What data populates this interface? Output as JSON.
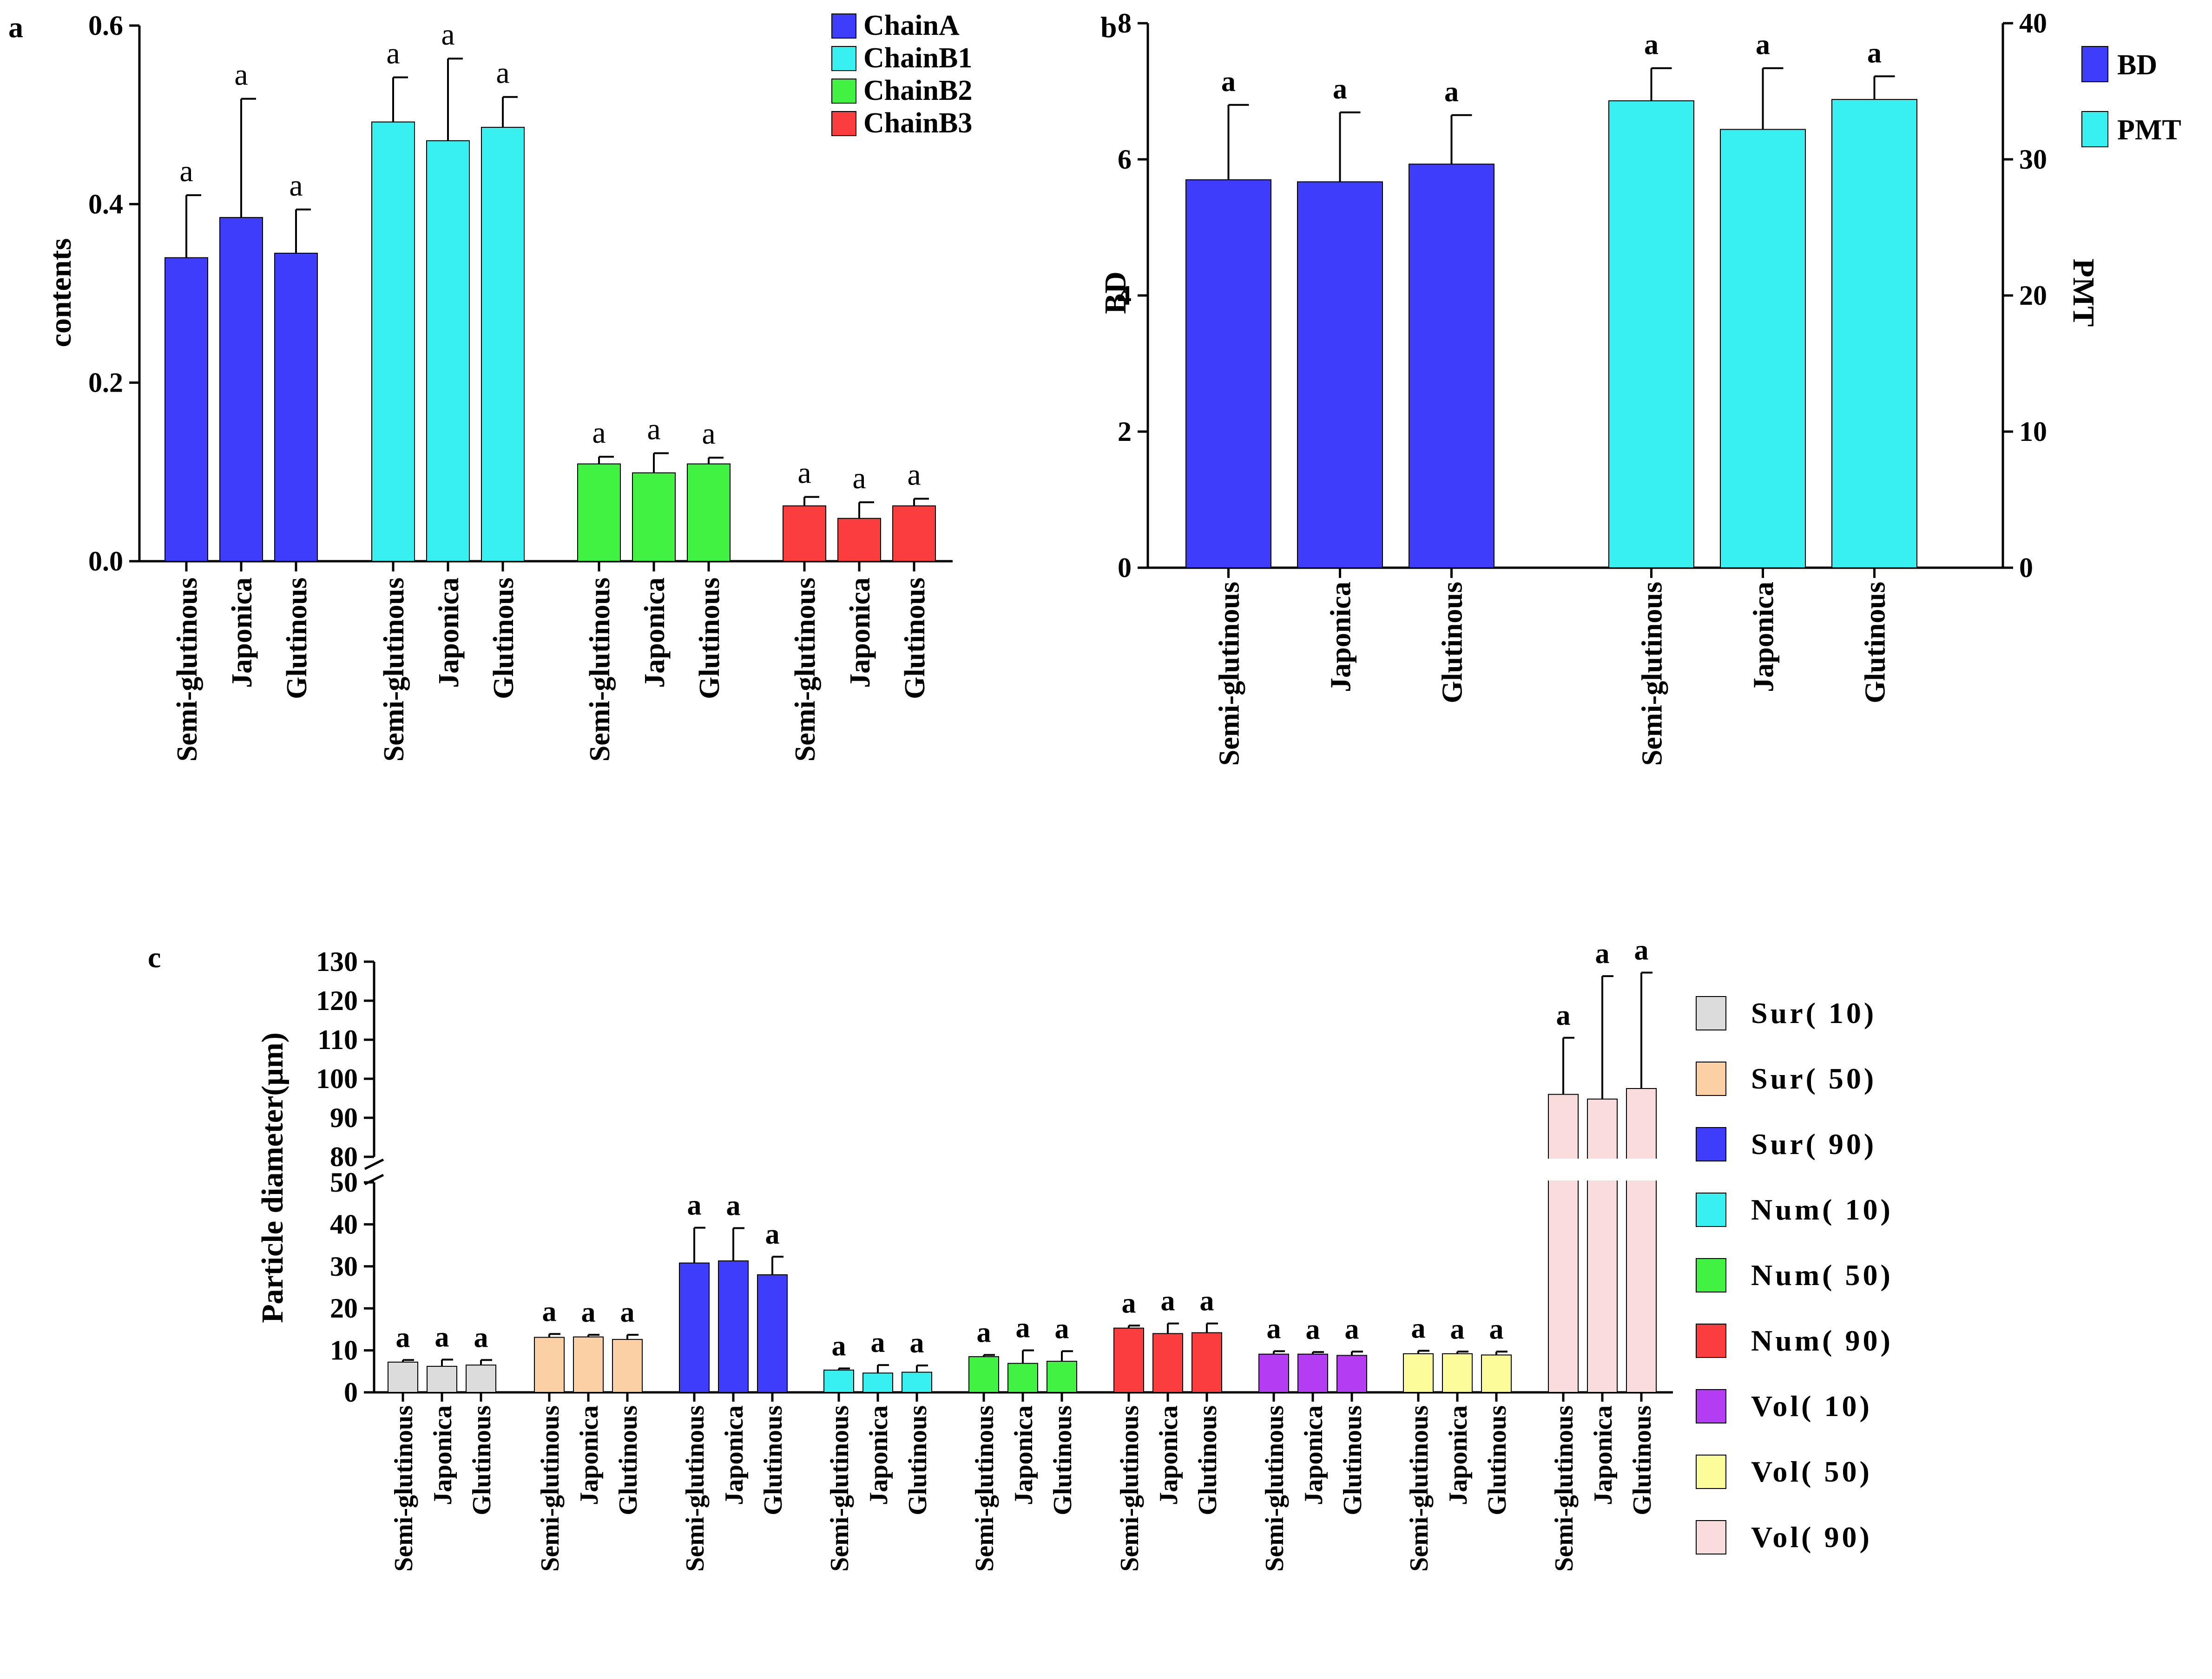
{
  "panels": {
    "a": {
      "label": "a",
      "chart_data": {
        "type": "bar",
        "title": "",
        "xlabel": "",
        "ylabel": "contents",
        "ylim": [
          0,
          0.6
        ],
        "yticks": [
          "0.0",
          "0.2",
          "0.4",
          "0.6"
        ],
        "categories": [
          "Semi-glutinous",
          "Japonica",
          "Glutinous"
        ],
        "series": [
          {
            "name": "ChainA",
            "color": "#3d3dfb",
            "values": [
              0.34,
              0.385,
              0.345
            ],
            "errors": [
              0.07,
              0.133,
              0.049
            ],
            "letters": [
              "a",
              "a",
              "a"
            ]
          },
          {
            "name": "ChainB1",
            "color": "#38f0f0",
            "values": [
              0.492,
              0.471,
              0.486
            ],
            "errors": [
              0.05,
              0.092,
              0.034
            ],
            "letters": [
              "a",
              "a",
              "a"
            ]
          },
          {
            "name": "ChainB2",
            "color": "#42f242",
            "values": [
              0.109,
              0.099,
              0.109
            ],
            "errors": [
              0.008,
              0.022,
              0.007
            ],
            "letters": [
              "a",
              "a",
              "a"
            ]
          },
          {
            "name": "ChainB3",
            "color": "#fa3e3e",
            "values": [
              0.062,
              0.048,
              0.062
            ],
            "errors": [
              0.01,
              0.018,
              0.008
            ],
            "letters": [
              "a",
              "a",
              "a"
            ]
          }
        ]
      }
    },
    "b": {
      "label": "b",
      "chart_data": {
        "type": "bar",
        "title": "",
        "ylabel": "BD",
        "y2label": "PMT",
        "ylim": [
          0,
          8
        ],
        "y2lim": [
          0,
          40
        ],
        "yticks": [
          "0",
          "2",
          "4",
          "6",
          "8"
        ],
        "y2ticks": [
          "0",
          "10",
          "20",
          "30",
          "40"
        ],
        "categories": [
          "Semi-glutinous",
          "Japonica",
          "Glutinous"
        ],
        "series": [
          {
            "name": "BD",
            "axis": "left",
            "color": "#3d3dfb",
            "values": [
              5.7,
              5.67,
              5.93
            ],
            "errors": [
              1.1,
              1.02,
              0.72
            ],
            "letters": [
              "a",
              "a",
              "a"
            ]
          },
          {
            "name": "PMT",
            "axis": "right",
            "color": "#38f0f0",
            "values": [
              34.3,
              32.2,
              34.4
            ],
            "errors": [
              2.4,
              4.5,
              1.7
            ],
            "letters": [
              "a",
              "a",
              "a"
            ]
          }
        ]
      }
    },
    "c": {
      "label": "c",
      "chart_data": {
        "type": "bar",
        "title": "",
        "ylabel": "Particle diameter(μm)",
        "ylim": [
          0,
          130
        ],
        "axis_break": [
          50,
          80
        ],
        "yticks_lower": [
          "0",
          "10",
          "20",
          "30",
          "40",
          "50"
        ],
        "yticks_upper": [
          "80",
          "90",
          "100",
          "110",
          "120",
          "130"
        ],
        "categories": [
          "Semi-glutinous",
          "Japonica",
          "Glutinous"
        ],
        "series": [
          {
            "name": "Sur( 10)",
            "color": "#dcdcdc",
            "values": [
              7.2,
              6.2,
              6.5
            ],
            "errors": [
              0.5,
              1.6,
              1.2
            ],
            "letters": [
              "a",
              "a",
              "a"
            ]
          },
          {
            "name": "Sur( 50)",
            "color": "#fbd0a4",
            "values": [
              13.1,
              13.2,
              12.6
            ],
            "errors": [
              0.8,
              0.5,
              1.1
            ],
            "letters": [
              "a",
              "a",
              "a"
            ]
          },
          {
            "name": "Sur( 90)",
            "color": "#3d3dfb",
            "values": [
              30.8,
              31.3,
              28.0
            ],
            "errors": [
              8.4,
              7.8,
              4.3
            ],
            "letters": [
              "a",
              "a",
              "a"
            ]
          },
          {
            "name": "Num( 10)",
            "color": "#38f0f0",
            "values": [
              5.3,
              4.6,
              4.8
            ],
            "errors": [
              0.4,
              1.9,
              1.6
            ],
            "letters": [
              "a",
              "a",
              "a"
            ]
          },
          {
            "name": "Num( 50)",
            "color": "#42f242",
            "values": [
              8.5,
              6.9,
              7.4
            ],
            "errors": [
              0.4,
              3.1,
              2.4
            ],
            "letters": [
              "a",
              "a",
              "a"
            ]
          },
          {
            "name": "Num( 90)",
            "color": "#fa3e3e",
            "values": [
              15.3,
              14.0,
              14.2
            ],
            "errors": [
              0.6,
              2.4,
              2.2
            ],
            "letters": [
              "a",
              "a",
              "a"
            ]
          },
          {
            "name": "Vol( 10)",
            "color": "#b43cf2",
            "values": [
              9.1,
              9.1,
              8.8
            ],
            "errors": [
              0.7,
              0.5,
              0.9
            ],
            "letters": [
              "a",
              "a",
              "a"
            ]
          },
          {
            "name": "Vol( 50)",
            "color": "#fcfc9a",
            "values": [
              9.2,
              9.2,
              8.9
            ],
            "errors": [
              0.7,
              0.5,
              0.8
            ],
            "letters": [
              "a",
              "a",
              "a"
            ]
          },
          {
            "name": "Vol( 90)",
            "color": "#fadcdc",
            "values": [
              96.0,
              94.8,
              97.5
            ],
            "errors": [
              14.5,
              31.5,
              29.7
            ],
            "letters": [
              "a",
              "a",
              "a"
            ]
          }
        ]
      }
    }
  }
}
